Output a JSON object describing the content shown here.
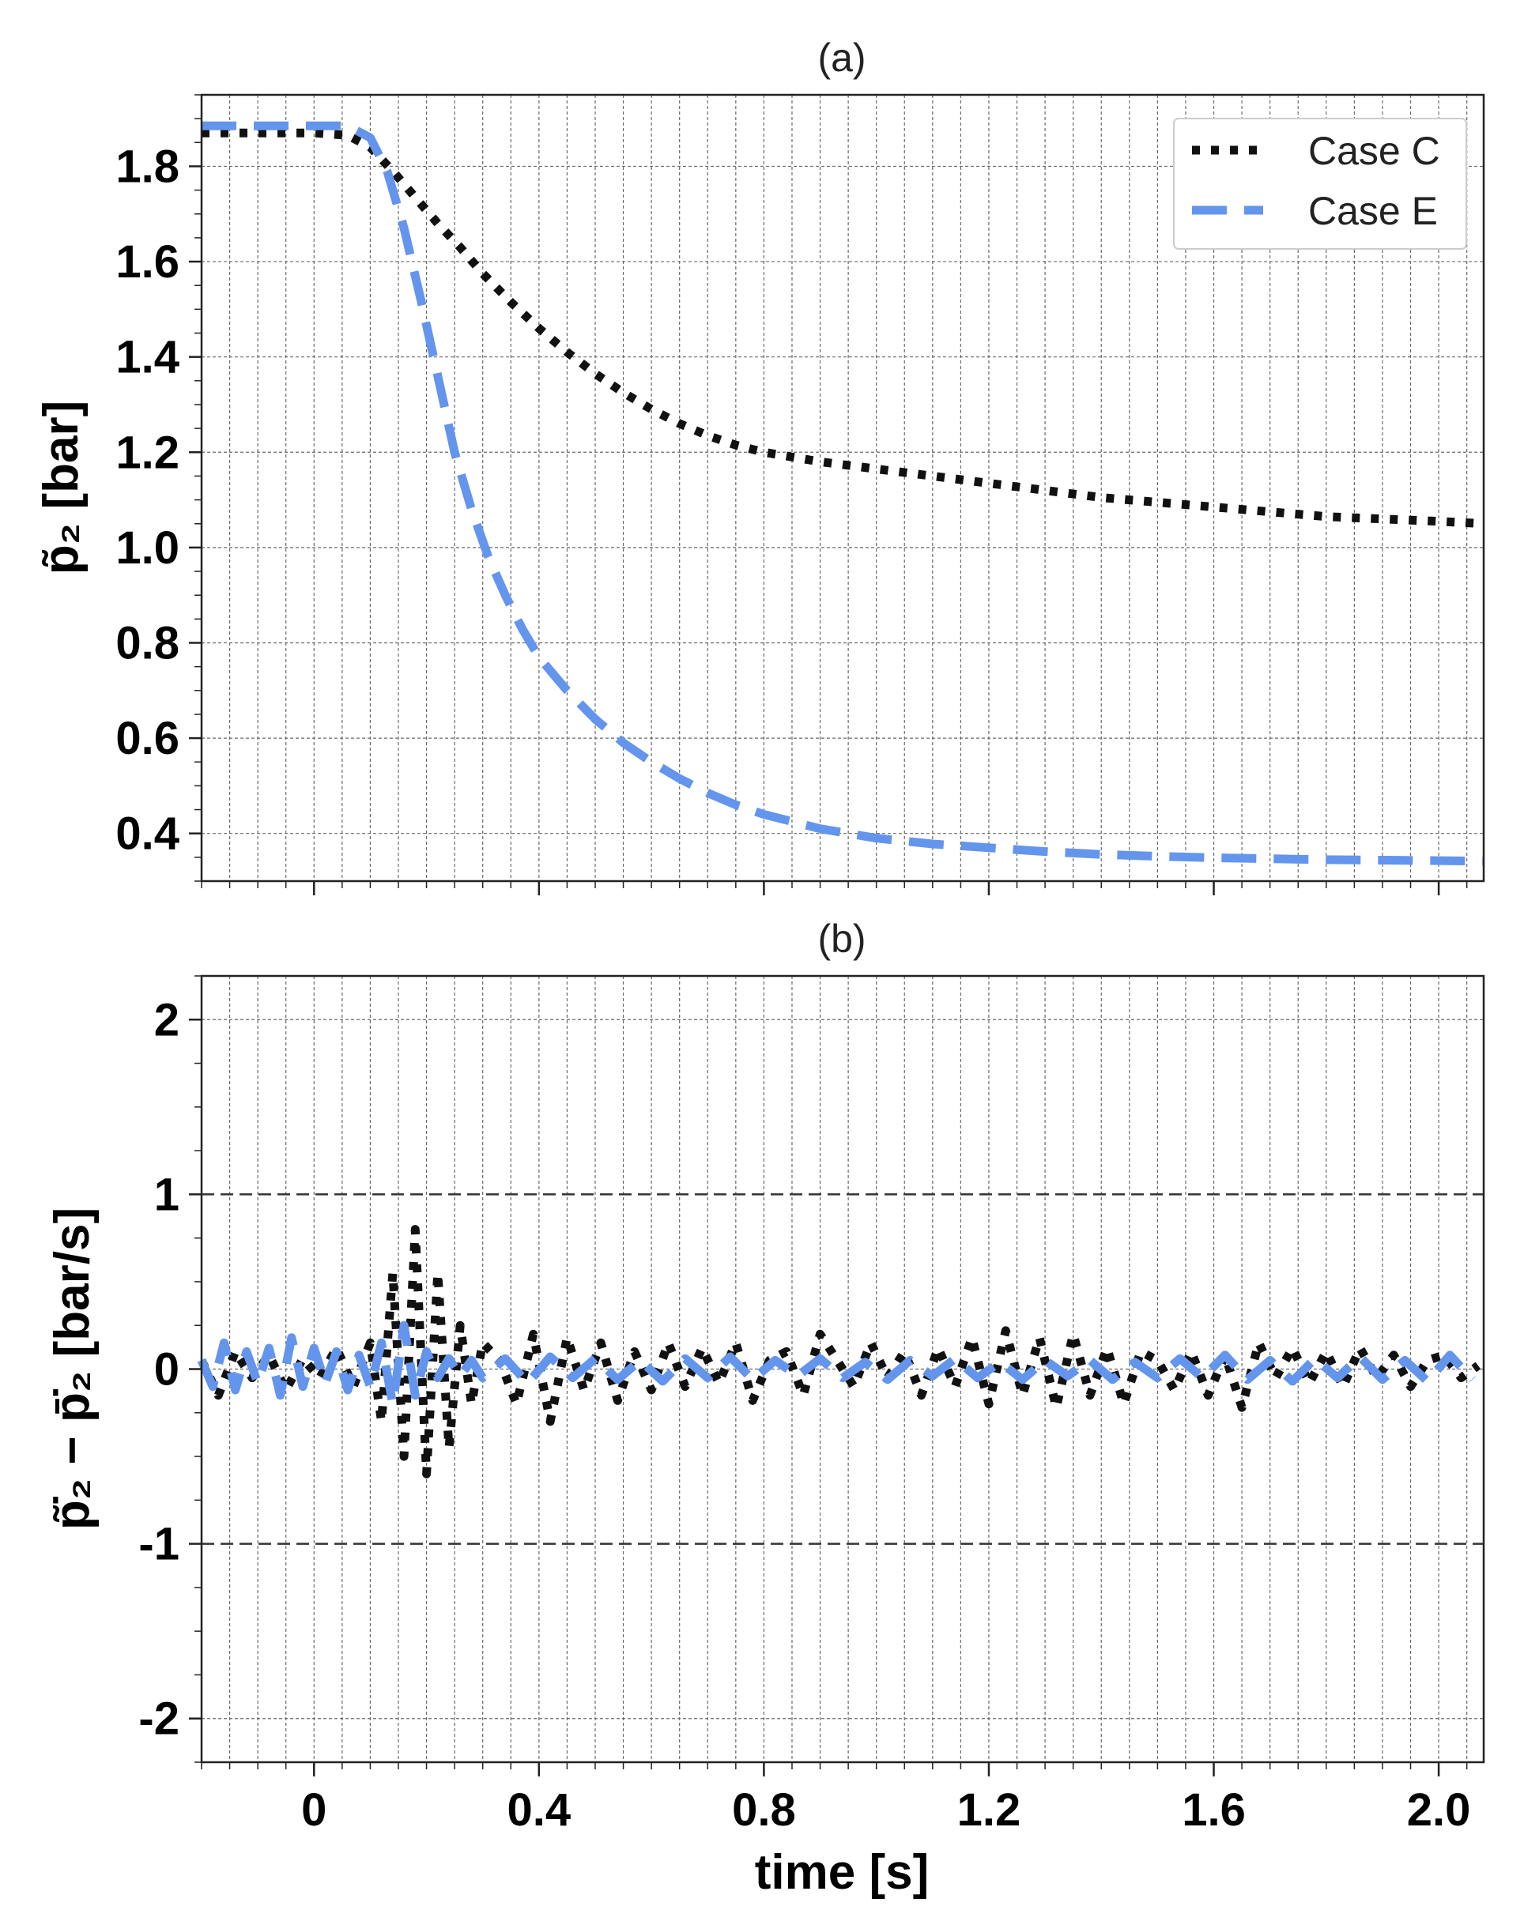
{
  "chart_data": [
    {
      "panel": "a",
      "type": "line",
      "title": "(a)",
      "ylabel": "p̃₂ [bar]",
      "xlabel": "",
      "xlim": [
        -0.2,
        2.08
      ],
      "ylim": [
        0.3,
        1.95
      ],
      "x_ticks": [
        0,
        0.4,
        0.8,
        1.2,
        1.6,
        2.0
      ],
      "y_ticks": [
        0.4,
        0.6,
        0.8,
        1.0,
        1.2,
        1.4,
        1.6,
        1.8
      ],
      "y_tick_labels": [
        "0.4",
        "0.6",
        "0.8",
        "1.0",
        "1.2",
        "1.4",
        "1.6",
        "1.8"
      ],
      "grid": true,
      "legend": "top-right",
      "series": [
        {
          "name": "Case C",
          "style": "dotted",
          "color": "#111111",
          "x": [
            -0.2,
            -0.1,
            0.0,
            0.06,
            0.1,
            0.14,
            0.18,
            0.22,
            0.26,
            0.3,
            0.35,
            0.4,
            0.45,
            0.5,
            0.55,
            0.6,
            0.65,
            0.7,
            0.75,
            0.8,
            0.9,
            1.0,
            1.1,
            1.2,
            1.3,
            1.4,
            1.5,
            1.6,
            1.7,
            1.8,
            1.9,
            2.0,
            2.08
          ],
          "values": [
            1.87,
            1.87,
            1.87,
            1.865,
            1.84,
            1.79,
            1.735,
            1.68,
            1.63,
            1.575,
            1.515,
            1.46,
            1.41,
            1.365,
            1.325,
            1.29,
            1.26,
            1.235,
            1.215,
            1.2,
            1.18,
            1.165,
            1.15,
            1.135,
            1.12,
            1.105,
            1.095,
            1.085,
            1.075,
            1.065,
            1.06,
            1.055,
            1.05
          ]
        },
        {
          "name": "Case E",
          "style": "dashed",
          "color": "#6495ED",
          "x": [
            -0.2,
            -0.1,
            0.0,
            0.06,
            0.1,
            0.13,
            0.16,
            0.19,
            0.22,
            0.25,
            0.28,
            0.31,
            0.34,
            0.37,
            0.4,
            0.45,
            0.5,
            0.55,
            0.6,
            0.65,
            0.7,
            0.75,
            0.8,
            0.85,
            0.9,
            0.95,
            1.0,
            1.1,
            1.2,
            1.3,
            1.4,
            1.5,
            1.6,
            1.7,
            1.8,
            1.9,
            2.0,
            2.08
          ],
          "values": [
            1.885,
            1.885,
            1.885,
            1.885,
            1.86,
            1.79,
            1.67,
            1.52,
            1.36,
            1.2,
            1.08,
            0.98,
            0.9,
            0.83,
            0.77,
            0.7,
            0.64,
            0.59,
            0.55,
            0.515,
            0.485,
            0.46,
            0.44,
            0.425,
            0.41,
            0.4,
            0.39,
            0.378,
            0.37,
            0.362,
            0.356,
            0.352,
            0.349,
            0.347,
            0.345,
            0.344,
            0.343,
            0.342
          ]
        }
      ]
    },
    {
      "panel": "b",
      "type": "line",
      "title": "(b)",
      "ylabel": "p̃̇₂ − p̄̇₂ [bar/s]",
      "xlabel": "time [s]",
      "xlim": [
        -0.2,
        2.08
      ],
      "ylim": [
        -2.25,
        2.25
      ],
      "x_ticks": [
        0,
        0.4,
        0.8,
        1.2,
        1.6,
        2.0
      ],
      "x_tick_labels": [
        "0",
        "0.4",
        "0.8",
        "1.2",
        "1.6",
        "2.0"
      ],
      "y_ticks": [
        -2,
        -1,
        0,
        1,
        2
      ],
      "y_tick_labels": [
        "-2",
        "-1",
        "0",
        "1",
        "2"
      ],
      "reference_lines": [
        1,
        -1
      ],
      "grid": true,
      "series": [
        {
          "name": "Case C",
          "style": "dotted",
          "color": "#111111",
          "x": [
            -0.2,
            -0.17,
            -0.14,
            -0.11,
            -0.08,
            -0.05,
            -0.02,
            0.01,
            0.04,
            0.07,
            0.1,
            0.12,
            0.14,
            0.16,
            0.18,
            0.2,
            0.22,
            0.24,
            0.26,
            0.28,
            0.3,
            0.33,
            0.36,
            0.39,
            0.42,
            0.45,
            0.48,
            0.51,
            0.54,
            0.57,
            0.6,
            0.63,
            0.66,
            0.69,
            0.72,
            0.75,
            0.78,
            0.81,
            0.84,
            0.87,
            0.9,
            0.93,
            0.96,
            0.99,
            1.02,
            1.05,
            1.08,
            1.11,
            1.14,
            1.17,
            1.2,
            1.23,
            1.26,
            1.29,
            1.32,
            1.35,
            1.38,
            1.41,
            1.44,
            1.47,
            1.5,
            1.53,
            1.56,
            1.59,
            1.62,
            1.65,
            1.68,
            1.71,
            1.74,
            1.77,
            1.8,
            1.83,
            1.86,
            1.89,
            1.92,
            1.95,
            1.98,
            2.01,
            2.04,
            2.07
          ],
          "values": [
            0.05,
            -0.15,
            0.1,
            -0.05,
            0.08,
            -0.12,
            0.06,
            -0.05,
            0.12,
            -0.1,
            0.15,
            -0.3,
            0.55,
            -0.5,
            0.8,
            -0.6,
            0.55,
            -0.45,
            0.25,
            -0.2,
            0.15,
            0.05,
            -0.2,
            0.2,
            -0.3,
            0.18,
            -0.12,
            0.15,
            -0.18,
            0.1,
            -0.12,
            0.15,
            -0.1,
            0.12,
            -0.08,
            0.15,
            -0.18,
            0.05,
            0.1,
            -0.15,
            0.2,
            0.05,
            -0.1,
            0.15,
            -0.05,
            0.1,
            -0.15,
            0.12,
            -0.1,
            0.18,
            -0.2,
            0.22,
            -0.15,
            0.18,
            -0.22,
            0.2,
            -0.15,
            0.12,
            -0.2,
            0.1,
            0.05,
            -0.12,
            0.1,
            -0.15,
            0.08,
            -0.22,
            0.15,
            -0.05,
            0.12,
            -0.08,
            0.1,
            -0.1,
            0.12,
            -0.05,
            0.08,
            -0.1,
            0.05,
            0.08,
            -0.05,
            0.02
          ]
        },
        {
          "name": "Case E",
          "style": "dashed",
          "color": "#6495ED",
          "x": [
            -0.2,
            -0.18,
            -0.16,
            -0.14,
            -0.12,
            -0.1,
            -0.08,
            -0.06,
            -0.04,
            -0.02,
            0.0,
            0.02,
            0.04,
            0.06,
            0.08,
            0.1,
            0.12,
            0.14,
            0.16,
            0.18,
            0.2,
            0.22,
            0.24,
            0.26,
            0.28,
            0.3,
            0.34,
            0.38,
            0.42,
            0.46,
            0.5,
            0.54,
            0.58,
            0.62,
            0.66,
            0.7,
            0.74,
            0.78,
            0.82,
            0.86,
            0.9,
            0.94,
            0.98,
            1.02,
            1.06,
            1.1,
            1.14,
            1.18,
            1.22,
            1.26,
            1.3,
            1.34,
            1.38,
            1.42,
            1.46,
            1.5,
            1.54,
            1.58,
            1.62,
            1.66,
            1.7,
            1.74,
            1.78,
            1.82,
            1.86,
            1.9,
            1.94,
            1.98,
            2.02,
            2.06
          ],
          "values": [
            0.05,
            -0.1,
            0.15,
            -0.12,
            0.1,
            -0.08,
            0.12,
            -0.15,
            0.18,
            -0.1,
            0.12,
            -0.08,
            0.1,
            -0.12,
            0.08,
            -0.1,
            0.15,
            -0.2,
            0.25,
            -0.15,
            0.1,
            -0.05,
            0.06,
            -0.04,
            0.05,
            -0.05,
            0.06,
            -0.08,
            0.07,
            -0.05,
            0.06,
            -0.06,
            0.05,
            -0.07,
            0.06,
            -0.05,
            0.07,
            -0.06,
            0.05,
            -0.04,
            0.06,
            -0.05,
            0.04,
            -0.06,
            0.05,
            -0.04,
            0.06,
            -0.05,
            0.04,
            -0.06,
            0.05,
            -0.04,
            0.05,
            -0.06,
            0.04,
            -0.05,
            0.06,
            -0.05,
            0.08,
            -0.06,
            0.05,
            -0.07,
            0.06,
            -0.05,
            0.07,
            -0.06,
            0.05,
            -0.07,
            0.08,
            -0.06
          ]
        }
      ]
    }
  ]
}
